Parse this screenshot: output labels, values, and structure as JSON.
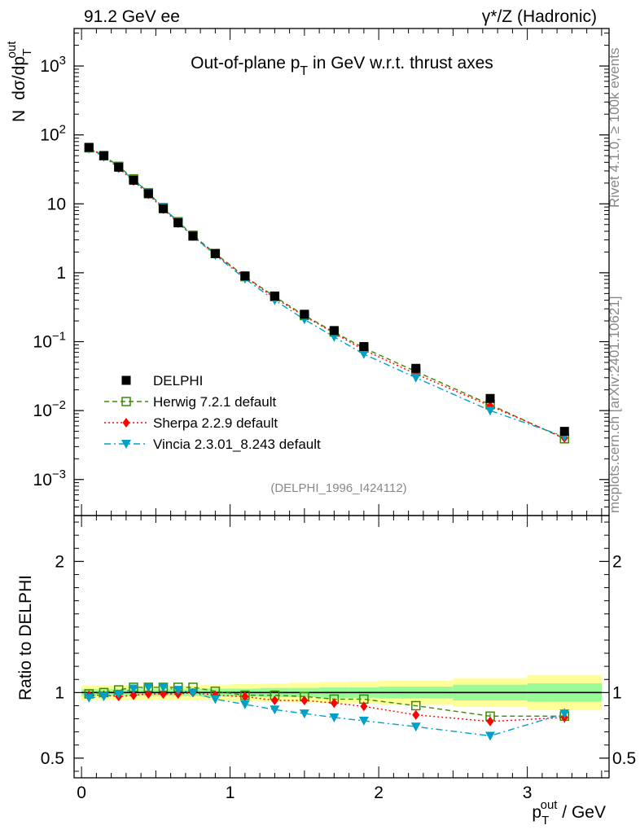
{
  "header": {
    "left": "91.2 GeV ee",
    "right": "γ*/Z (Hadronic)"
  },
  "side_labels": {
    "rivet": "Rivet 4.1.0, ≥ 100k events",
    "mcplots": "mcplots.cern.ch [arXiv:2401.10621]"
  },
  "colors": {
    "data": "#000000",
    "herwig": "#3a8a00",
    "sherpa": "#ff0000",
    "vincia": "#00a0c8",
    "band_inner": "#98fb98",
    "band_outer": "#ffff99"
  },
  "chart_data": [
    {
      "type": "scatter",
      "panel": "main",
      "title_parts": {
        "before": "Out-of-plane p",
        "sub": "T",
        "after": " in GeV w.r.t. thrust axes"
      },
      "ylabel_parts": {
        "prefix": "N",
        "frac": "dσ/dp",
        "sub": "T",
        "sup": "out"
      },
      "yscale": "log",
      "xlim": [
        -0.05,
        3.55
      ],
      "ylim": [
        0.0003,
        3500
      ],
      "yticks": [
        {
          "value": 0.001,
          "base": "10",
          "exp": "−3"
        },
        {
          "value": 0.01,
          "base": "10",
          "exp": "−2"
        },
        {
          "value": 0.1,
          "base": "10",
          "exp": "−1"
        },
        {
          "value": 1,
          "base": "1",
          "exp": ""
        },
        {
          "value": 10,
          "base": "10",
          "exp": ""
        },
        {
          "value": 100,
          "base": "10",
          "exp": "2"
        },
        {
          "value": 1000,
          "base": "10",
          "exp": "3"
        }
      ],
      "x": [
        0.05,
        0.15,
        0.25,
        0.35,
        0.45,
        0.55,
        0.65,
        0.75,
        0.9,
        1.1,
        1.3,
        1.5,
        1.7,
        1.9,
        2.25,
        2.75,
        3.25
      ],
      "series": [
        {
          "name": "DELPHI",
          "key": "data",
          "marker": "square-filled",
          "line": "none",
          "values": [
            66,
            50,
            34,
            22,
            14,
            8.5,
            5.3,
            3.4,
            1.9,
            0.9,
            0.46,
            0.25,
            0.145,
            0.085,
            0.041,
            0.015,
            0.005
          ]
        },
        {
          "name": "Herwig 7.2.1 default",
          "key": "herwig",
          "marker": "square-open",
          "line": "dashed",
          "values": [
            65,
            50,
            35,
            23,
            14.5,
            8.8,
            5.5,
            3.5,
            1.9,
            0.88,
            0.45,
            0.24,
            0.138,
            0.081,
            0.037,
            0.0122,
            0.0039
          ]
        },
        {
          "name": "Sherpa 2.2.9 default",
          "key": "sherpa",
          "marker": "diamond",
          "line": "dotted",
          "values": [
            65,
            49,
            33,
            21.5,
            13.8,
            8.4,
            5.25,
            3.4,
            1.85,
            0.87,
            0.43,
            0.235,
            0.133,
            0.076,
            0.034,
            0.0117,
            0.004
          ]
        },
        {
          "name": "Vincia 2.3.01_8.243 default",
          "key": "vincia",
          "marker": "triangle-down",
          "line": "dashdot",
          "values": [
            63,
            48,
            33.5,
            22.5,
            14.5,
            8.8,
            5.4,
            3.4,
            1.8,
            0.82,
            0.4,
            0.21,
            0.117,
            0.066,
            0.03,
            0.01,
            0.0042
          ]
        }
      ],
      "annotation": "(DELPHI_1996_I424112)",
      "legend_position": "lower-left"
    },
    {
      "type": "line",
      "panel": "ratio",
      "ylabel": "Ratio to DELPHI",
      "xlabel_parts": {
        "p": "p",
        "sub": "T",
        "sup": "out",
        "after": " / GeV"
      },
      "xlim": [
        -0.05,
        3.55
      ],
      "ylim": [
        0.35,
        2.35
      ],
      "yticks": [
        {
          "value": 0.5,
          "label": "0.5"
        },
        {
          "value": 1,
          "label": "1"
        },
        {
          "value": 2,
          "label": "2"
        }
      ],
      "xticks": [
        {
          "value": 0,
          "label": "0"
        },
        {
          "value": 1,
          "label": "1"
        },
        {
          "value": 2,
          "label": "2"
        },
        {
          "value": 3,
          "label": "3"
        }
      ],
      "bin_edges": [
        0,
        0.1,
        0.2,
        0.3,
        0.4,
        0.5,
        0.6,
        0.7,
        0.8,
        1.0,
        1.2,
        1.4,
        1.6,
        1.8,
        2.0,
        2.5,
        3.0,
        3.5
      ],
      "band_inner": [
        0.025,
        0.025,
        0.025,
        0.025,
        0.025,
        0.025,
        0.025,
        0.025,
        0.03,
        0.03,
        0.035,
        0.035,
        0.04,
        0.04,
        0.045,
        0.06,
        0.07
      ],
      "band_outer": [
        0.055,
        0.055,
        0.055,
        0.055,
        0.055,
        0.055,
        0.055,
        0.055,
        0.06,
        0.065,
        0.07,
        0.075,
        0.08,
        0.085,
        0.09,
        0.11,
        0.135
      ],
      "x": [
        0.05,
        0.15,
        0.25,
        0.35,
        0.45,
        0.55,
        0.65,
        0.75,
        0.9,
        1.1,
        1.3,
        1.5,
        1.7,
        1.9,
        2.25,
        2.75,
        3.25
      ],
      "series": [
        {
          "name": "Herwig 7.2.1 default",
          "key": "herwig",
          "marker": "square-open",
          "line": "dashed",
          "values": [
            0.99,
            1.0,
            1.02,
            1.04,
            1.04,
            1.04,
            1.04,
            1.04,
            1.01,
            0.98,
            0.98,
            0.97,
            0.95,
            0.95,
            0.9,
            0.82,
            0.82
          ],
          "errors": [
            0,
            0,
            0,
            0,
            0,
            0,
            0,
            0,
            0,
            0,
            0,
            0,
            0,
            0,
            0,
            0.02,
            0.03
          ]
        },
        {
          "name": "Sherpa 2.2.9 default",
          "key": "sherpa",
          "marker": "diamond",
          "line": "dotted",
          "values": [
            0.98,
            0.98,
            0.97,
            0.98,
            0.99,
            0.99,
            0.99,
            1.0,
            0.98,
            0.97,
            0.94,
            0.94,
            0.92,
            0.895,
            0.83,
            0.78,
            0.81
          ],
          "errors": [
            0,
            0,
            0,
            0,
            0,
            0,
            0,
            0,
            0,
            0,
            0,
            0,
            0,
            0,
            0,
            0.025,
            0.04
          ]
        },
        {
          "name": "Vincia 2.3.01_8.243 default",
          "key": "vincia",
          "marker": "triangle-down",
          "line": "dashdot",
          "values": [
            0.96,
            0.97,
            0.99,
            1.03,
            1.04,
            1.04,
            1.02,
            1.0,
            0.95,
            0.91,
            0.87,
            0.84,
            0.81,
            0.785,
            0.74,
            0.67,
            0.84
          ],
          "errors": [
            0,
            0,
            0,
            0,
            0,
            0,
            0,
            0,
            0,
            0,
            0,
            0,
            0,
            0,
            0,
            0.03,
            0.04
          ]
        }
      ]
    }
  ]
}
